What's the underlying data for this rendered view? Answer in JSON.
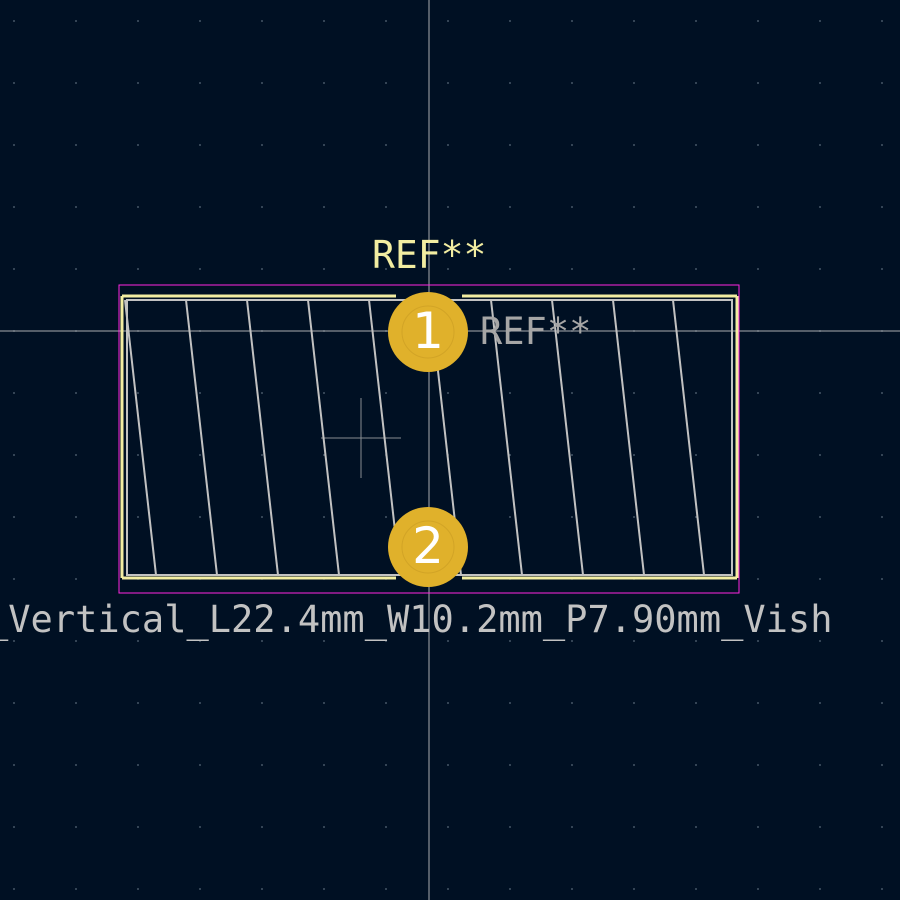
{
  "footprint": {
    "reference_silk": "REF**",
    "reference_fab": "REF**",
    "value": "_Vertical_L22.4mm_W10.2mm_P7.90mm_Vish"
  },
  "pads": [
    {
      "number": "1"
    },
    {
      "number": "2"
    }
  ],
  "colors": {
    "background": "#001023",
    "silkscreen": "#f2eda1",
    "fabrication": "#c2c2c2",
    "courtyard": "#ff26e2",
    "pad": "#e0b12b",
    "crosshair": "#c8c8c8"
  }
}
